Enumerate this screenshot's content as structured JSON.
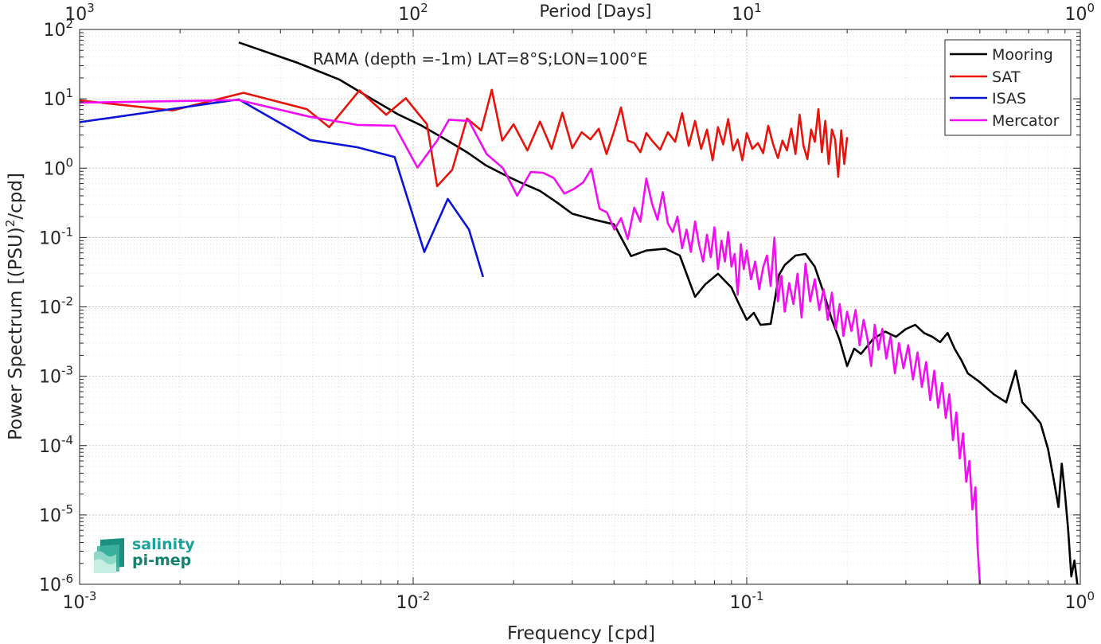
{
  "chart_data": {
    "type": "line",
    "title": "RAMA (depth =-1m) LAT=8°S;LON=100°E",
    "xlabel": "Frequency [cpd]",
    "ylabel_main": "Power Spectrum [(PSU)",
    "ylabel_sup": "2",
    "ylabel_tail": "/cpd]",
    "top_xlabel": "Period [Days]",
    "xscale": "log",
    "yscale": "log",
    "xlim": [
      0.001,
      1
    ],
    "ylim": [
      1e-06,
      100
    ],
    "grid": true,
    "legend_position": "top-right",
    "x_ticks": [
      {
        "base": "10",
        "exp": "-3"
      },
      {
        "base": "10",
        "exp": "-2"
      },
      {
        "base": "10",
        "exp": "-1"
      },
      {
        "base": "10",
        "exp": "0"
      }
    ],
    "y_ticks": [
      {
        "base": "10",
        "exp": "-6"
      },
      {
        "base": "10",
        "exp": "-5"
      },
      {
        "base": "10",
        "exp": "-4"
      },
      {
        "base": "10",
        "exp": "-3"
      },
      {
        "base": "10",
        "exp": "-2"
      },
      {
        "base": "10",
        "exp": "-1"
      },
      {
        "base": "10",
        "exp": "0"
      },
      {
        "base": "10",
        "exp": "1"
      },
      {
        "base": "10",
        "exp": "2"
      }
    ],
    "top_ticks": [
      {
        "base": "10",
        "exp": "3"
      },
      {
        "base": "10",
        "exp": "2"
      },
      {
        "base": "10",
        "exp": "1"
      },
      {
        "base": "10",
        "exp": "0"
      }
    ],
    "series": [
      {
        "name": "Mooring",
        "color": "#000000",
        "points": [
          [
            0.003,
            65
          ],
          [
            0.0045,
            33
          ],
          [
            0.006,
            19
          ],
          [
            0.0075,
            10
          ],
          [
            0.009,
            6
          ],
          [
            0.0105,
            4.2
          ],
          [
            0.0125,
            2.6
          ],
          [
            0.0145,
            1.7
          ],
          [
            0.0165,
            1.1
          ],
          [
            0.019,
            0.78
          ],
          [
            0.021,
            0.62
          ],
          [
            0.024,
            0.47
          ],
          [
            0.027,
            0.32
          ],
          [
            0.03,
            0.22
          ],
          [
            0.035,
            0.18
          ],
          [
            0.04,
            0.155
          ],
          [
            0.045,
            0.054
          ],
          [
            0.05,
            0.065
          ],
          [
            0.057,
            0.069
          ],
          [
            0.063,
            0.055
          ],
          [
            0.07,
            0.014
          ],
          [
            0.075,
            0.021
          ],
          [
            0.082,
            0.03
          ],
          [
            0.09,
            0.019
          ],
          [
            0.094,
            0.012
          ],
          [
            0.1,
            0.0065
          ],
          [
            0.105,
            0.0082
          ],
          [
            0.11,
            0.0055
          ],
          [
            0.118,
            0.0057
          ],
          [
            0.125,
            0.029
          ],
          [
            0.13,
            0.04
          ],
          [
            0.14,
            0.055
          ],
          [
            0.15,
            0.058
          ],
          [
            0.16,
            0.038
          ],
          [
            0.17,
            0.016
          ],
          [
            0.18,
            0.0065
          ],
          [
            0.19,
            0.0033
          ],
          [
            0.2,
            0.0014
          ],
          [
            0.21,
            0.0025
          ],
          [
            0.22,
            0.0021
          ],
          [
            0.24,
            0.0035
          ],
          [
            0.26,
            0.0044
          ],
          [
            0.28,
            0.0037
          ],
          [
            0.3,
            0.0048
          ],
          [
            0.32,
            0.0055
          ],
          [
            0.34,
            0.0042
          ],
          [
            0.36,
            0.0037
          ],
          [
            0.38,
            0.0031
          ],
          [
            0.4,
            0.0042
          ],
          [
            0.42,
            0.0025
          ],
          [
            0.44,
            0.0017
          ],
          [
            0.46,
            0.0011
          ],
          [
            0.5,
            0.00082
          ],
          [
            0.55,
            0.00055
          ],
          [
            0.6,
            0.00042
          ],
          [
            0.64,
            0.0012
          ],
          [
            0.67,
            0.00042
          ],
          [
            0.72,
            0.00029
          ],
          [
            0.76,
            0.00021
          ],
          [
            0.8,
            9e-05
          ],
          [
            0.83,
            3.5e-05
          ],
          [
            0.86,
            1.3e-05
          ],
          [
            0.88,
            5.5e-05
          ],
          [
            0.9,
            2e-05
          ],
          [
            0.92,
            6e-06
          ],
          [
            0.94,
            1.3e-06
          ],
          [
            0.96,
            2.2e-06
          ],
          [
            0.98,
            1e-06
          ]
        ]
      },
      {
        "name": "SAT",
        "color": "#e8140c",
        "points": [
          [
            0.001,
            9.5
          ],
          [
            0.0019,
            6.8
          ],
          [
            0.0031,
            12.2
          ],
          [
            0.0048,
            7.1
          ],
          [
            0.0056,
            3.9
          ],
          [
            0.0069,
            13.2
          ],
          [
            0.0083,
            5.9
          ],
          [
            0.0095,
            10.2
          ],
          [
            0.011,
            4.3
          ],
          [
            0.0118,
            0.55
          ],
          [
            0.0131,
            0.95
          ],
          [
            0.0145,
            5.2
          ],
          [
            0.016,
            3.5
          ],
          [
            0.0172,
            13.5
          ],
          [
            0.0185,
            2.5
          ],
          [
            0.02,
            4.3
          ],
          [
            0.022,
            1.8
          ],
          [
            0.024,
            4.7
          ],
          [
            0.026,
            1.9
          ],
          [
            0.028,
            6.3
          ],
          [
            0.03,
            1.95
          ],
          [
            0.032,
            3.3
          ],
          [
            0.034,
            2.6
          ],
          [
            0.036,
            3.7
          ],
          [
            0.038,
            1.6
          ],
          [
            0.04,
            3.4
          ],
          [
            0.042,
            7.5
          ],
          [
            0.044,
            2.5
          ],
          [
            0.046,
            2.3
          ],
          [
            0.048,
            1.7
          ],
          [
            0.05,
            3.2
          ],
          [
            0.052,
            2.5
          ],
          [
            0.055,
            1.85
          ],
          [
            0.058,
            3.3
          ],
          [
            0.061,
            2.4
          ],
          [
            0.064,
            6.2
          ],
          [
            0.067,
            2.1
          ],
          [
            0.07,
            4.8
          ],
          [
            0.073,
            1.9
          ],
          [
            0.076,
            3.6
          ],
          [
            0.079,
            1.3
          ],
          [
            0.082,
            3.9
          ],
          [
            0.085,
            2.2
          ],
          [
            0.088,
            5.1
          ],
          [
            0.091,
            1.8
          ],
          [
            0.094,
            2.6
          ],
          [
            0.097,
            1.3
          ],
          [
            0.1,
            3.2
          ],
          [
            0.104,
            1.9
          ],
          [
            0.108,
            2.3
          ],
          [
            0.112,
            1.65
          ],
          [
            0.116,
            4.1
          ],
          [
            0.12,
            2.2
          ],
          [
            0.124,
            1.4
          ],
          [
            0.128,
            2.5
          ],
          [
            0.132,
            1.8
          ],
          [
            0.136,
            3.7
          ],
          [
            0.14,
            1.6
          ],
          [
            0.144,
            5.9
          ],
          [
            0.148,
            2.1
          ],
          [
            0.152,
            1.35
          ],
          [
            0.156,
            3.6
          ],
          [
            0.16,
            2.4
          ],
          [
            0.164,
            7.1
          ],
          [
            0.168,
            1.7
          ],
          [
            0.172,
            4.8
          ],
          [
            0.176,
            1.15
          ],
          [
            0.18,
            3.6
          ],
          [
            0.184,
            2.6
          ],
          [
            0.188,
            0.75
          ],
          [
            0.192,
            3.5
          ],
          [
            0.196,
            1.15
          ],
          [
            0.2,
            2.8
          ]
        ]
      },
      {
        "name": "ISAS",
        "color": "#0c14d8",
        "points": [
          [
            0.001,
            4.6
          ],
          [
            0.003,
            9.8
          ],
          [
            0.0049,
            2.55
          ],
          [
            0.0068,
            2.0
          ],
          [
            0.0088,
            1.45
          ],
          [
            0.0108,
            0.062
          ],
          [
            0.0127,
            0.36
          ],
          [
            0.0147,
            0.13
          ],
          [
            0.0162,
            0.027
          ]
        ]
      },
      {
        "name": "Mercator",
        "color": "#f20ef2",
        "points": [
          [
            0.001,
            8.8
          ],
          [
            0.003,
            9.6
          ],
          [
            0.0049,
            5.5
          ],
          [
            0.0068,
            4.2
          ],
          [
            0.0088,
            4.1
          ],
          [
            0.0103,
            1.02
          ],
          [
            0.0118,
            2.5
          ],
          [
            0.0128,
            5.0
          ],
          [
            0.0147,
            4.8
          ],
          [
            0.0166,
            1.6
          ],
          [
            0.0186,
            1.0
          ],
          [
            0.0205,
            0.4
          ],
          [
            0.0225,
            0.88
          ],
          [
            0.0245,
            0.86
          ],
          [
            0.0264,
            0.72
          ],
          [
            0.0284,
            0.43
          ],
          [
            0.0303,
            0.5
          ],
          [
            0.0323,
            0.62
          ],
          [
            0.0342,
            0.98
          ],
          [
            0.0362,
            0.26
          ],
          [
            0.0381,
            0.23
          ],
          [
            0.0401,
            0.13
          ],
          [
            0.042,
            0.19
          ],
          [
            0.044,
            0.095
          ],
          [
            0.046,
            0.27
          ],
          [
            0.048,
            0.17
          ],
          [
            0.05,
            0.71
          ],
          [
            0.052,
            0.31
          ],
          [
            0.054,
            0.18
          ],
          [
            0.056,
            0.45
          ],
          [
            0.058,
            0.16
          ],
          [
            0.06,
            0.12
          ],
          [
            0.062,
            0.2
          ],
          [
            0.064,
            0.07
          ],
          [
            0.066,
            0.13
          ],
          [
            0.068,
            0.062
          ],
          [
            0.07,
            0.17
          ],
          [
            0.072,
            0.078
          ],
          [
            0.074,
            0.045
          ],
          [
            0.076,
            0.11
          ],
          [
            0.078,
            0.052
          ],
          [
            0.08,
            0.14
          ],
          [
            0.082,
            0.035
          ],
          [
            0.084,
            0.09
          ],
          [
            0.086,
            0.045
          ],
          [
            0.088,
            0.12
          ],
          [
            0.09,
            0.038
          ],
          [
            0.092,
            0.058
          ],
          [
            0.094,
            0.015
          ],
          [
            0.096,
            0.08
          ],
          [
            0.098,
            0.035
          ],
          [
            0.1,
            0.065
          ],
          [
            0.103,
            0.025
          ],
          [
            0.106,
            0.045
          ],
          [
            0.109,
            0.018
          ],
          [
            0.112,
            0.037
          ],
          [
            0.115,
            0.055
          ],
          [
            0.118,
            0.02
          ],
          [
            0.121,
            0.1
          ],
          [
            0.124,
            0.012
          ],
          [
            0.127,
            0.028
          ],
          [
            0.13,
            0.0085
          ],
          [
            0.134,
            0.022
          ],
          [
            0.138,
            0.011
          ],
          [
            0.142,
            0.03
          ],
          [
            0.146,
            0.007
          ],
          [
            0.15,
            0.042
          ],
          [
            0.155,
            0.012
          ],
          [
            0.16,
            0.025
          ],
          [
            0.165,
            0.009
          ],
          [
            0.17,
            0.018
          ],
          [
            0.175,
            0.0065
          ],
          [
            0.18,
            0.016
          ],
          [
            0.185,
            0.0048
          ],
          [
            0.19,
            0.011
          ],
          [
            0.195,
            0.0038
          ],
          [
            0.2,
            0.0085
          ],
          [
            0.206,
            0.0045
          ],
          [
            0.212,
            0.009
          ],
          [
            0.218,
            0.0028
          ],
          [
            0.224,
            0.0065
          ],
          [
            0.23,
            0.0035
          ],
          [
            0.236,
            0.0014
          ],
          [
            0.242,
            0.0055
          ],
          [
            0.248,
            0.0024
          ],
          [
            0.255,
            0.0048
          ],
          [
            0.262,
            0.0018
          ],
          [
            0.27,
            0.0038
          ],
          [
            0.278,
            0.0011
          ],
          [
            0.286,
            0.003
          ],
          [
            0.295,
            0.0013
          ],
          [
            0.305,
            0.0028
          ],
          [
            0.315,
            0.0009
          ],
          [
            0.325,
            0.0022
          ],
          [
            0.335,
            0.0007
          ],
          [
            0.345,
            0.0016
          ],
          [
            0.355,
            0.00045
          ],
          [
            0.365,
            0.0012
          ],
          [
            0.375,
            0.00035
          ],
          [
            0.385,
            0.0008
          ],
          [
            0.395,
            0.00025
          ],
          [
            0.405,
            0.00055
          ],
          [
            0.415,
            0.00012
          ],
          [
            0.425,
            0.0003
          ],
          [
            0.435,
            6.5e-05
          ],
          [
            0.445,
            0.00015
          ],
          [
            0.455,
            3e-05
          ],
          [
            0.465,
            6e-05
          ],
          [
            0.475,
            1.2e-05
          ],
          [
            0.485,
            2.5e-05
          ],
          [
            0.492,
            3.5e-06
          ],
          [
            0.5,
            9e-07
          ]
        ]
      }
    ]
  }
}
